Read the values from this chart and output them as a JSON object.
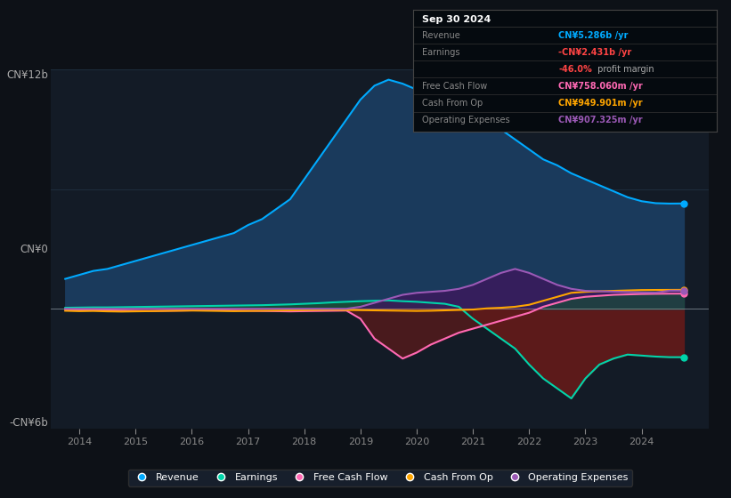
{
  "bg_color": "#0d1117",
  "plot_bg_color": "#131b26",
  "grid_color": "#1e2d3d",
  "ylabel_top": "CN¥12b",
  "ylabel_zero": "CN¥0",
  "ylabel_bot": "-CN¥6b",
  "ylim_min": -6000000000,
  "ylim_max": 12000000000,
  "xlim_min": 2013.5,
  "xlim_max": 2025.2,
  "x_ticks": [
    2014,
    2015,
    2016,
    2017,
    2018,
    2019,
    2020,
    2021,
    2022,
    2023,
    2024
  ],
  "colors": {
    "revenue": "#00aaff",
    "earnings": "#00d4aa",
    "free_cash_flow": "#ff69b4",
    "cash_from_op": "#ffa500",
    "operating_expenses": "#9b59b6",
    "revenue_fill": "#1a3a5c",
    "earnings_fill_pos": "#1a4a3a",
    "earnings_fill_neg": "#5c1a1a",
    "fcf_fill_neg": "#5c1a1a",
    "fcf_fill_pos": "#1a4a3a",
    "opex_fill": "#3a1a5c"
  },
  "revenue_x": [
    2013.75,
    2014.0,
    2014.25,
    2014.5,
    2014.75,
    2015.0,
    2015.25,
    2015.5,
    2015.75,
    2016.0,
    2016.25,
    2016.5,
    2016.75,
    2017.0,
    2017.25,
    2017.5,
    2017.75,
    2018.0,
    2018.25,
    2018.5,
    2018.75,
    2019.0,
    2019.25,
    2019.5,
    2019.75,
    2020.0,
    2020.25,
    2020.5,
    2020.75,
    2021.0,
    2021.25,
    2021.5,
    2021.75,
    2022.0,
    2022.25,
    2022.5,
    2022.75,
    2023.0,
    2023.25,
    2023.5,
    2023.75,
    2024.0,
    2024.25,
    2024.5,
    2024.75
  ],
  "revenue_y": [
    1500000000,
    1700000000,
    1900000000,
    2000000000,
    2200000000,
    2400000000,
    2600000000,
    2800000000,
    3000000000,
    3200000000,
    3400000000,
    3600000000,
    3800000000,
    4200000000,
    4500000000,
    5000000000,
    5500000000,
    6500000000,
    7500000000,
    8500000000,
    9500000000,
    10500000000,
    11200000000,
    11500000000,
    11300000000,
    11000000000,
    10500000000,
    10200000000,
    10000000000,
    9800000000,
    9500000000,
    9000000000,
    8500000000,
    8000000000,
    7500000000,
    7200000000,
    6800000000,
    6500000000,
    6200000000,
    5900000000,
    5600000000,
    5400000000,
    5300000000,
    5280000000,
    5286000000
  ],
  "earnings_x": [
    2013.75,
    2014.0,
    2014.25,
    2014.5,
    2014.75,
    2015.0,
    2015.25,
    2015.5,
    2015.75,
    2016.0,
    2016.25,
    2016.5,
    2016.75,
    2017.0,
    2017.25,
    2017.5,
    2017.75,
    2018.0,
    2018.25,
    2018.5,
    2018.75,
    2019.0,
    2019.25,
    2019.5,
    2019.75,
    2020.0,
    2020.25,
    2020.5,
    2020.75,
    2021.0,
    2021.25,
    2021.5,
    2021.75,
    2022.0,
    2022.25,
    2022.5,
    2022.75,
    2023.0,
    2023.25,
    2023.5,
    2023.75,
    2024.0,
    2024.25,
    2024.5,
    2024.75
  ],
  "earnings_y": [
    50000000,
    60000000,
    70000000,
    70000000,
    80000000,
    90000000,
    100000000,
    110000000,
    120000000,
    130000000,
    140000000,
    150000000,
    160000000,
    170000000,
    180000000,
    200000000,
    220000000,
    250000000,
    280000000,
    320000000,
    350000000,
    380000000,
    400000000,
    420000000,
    380000000,
    350000000,
    300000000,
    250000000,
    100000000,
    -500000000,
    -1000000000,
    -1500000000,
    -2000000000,
    -2800000000,
    -3500000000,
    -4000000000,
    -4500000000,
    -3500000000,
    -2800000000,
    -2500000000,
    -2300000000,
    -2350000000,
    -2400000000,
    -2430000000,
    -2431000000
  ],
  "fcf_x": [
    2013.75,
    2014.0,
    2014.25,
    2014.5,
    2014.75,
    2015.0,
    2015.25,
    2015.5,
    2015.75,
    2016.0,
    2016.25,
    2016.5,
    2016.75,
    2017.0,
    2017.25,
    2017.5,
    2017.75,
    2018.0,
    2018.25,
    2018.5,
    2018.75,
    2019.0,
    2019.25,
    2019.5,
    2019.75,
    2020.0,
    2020.25,
    2020.5,
    2020.75,
    2021.0,
    2021.25,
    2021.5,
    2021.75,
    2022.0,
    2022.25,
    2022.5,
    2022.75,
    2023.0,
    2023.25,
    2023.5,
    2023.75,
    2024.0,
    2024.25,
    2024.5,
    2024.75
  ],
  "fcf_y": [
    -50000000,
    -60000000,
    -70000000,
    -80000000,
    -90000000,
    -100000000,
    -110000000,
    -100000000,
    -90000000,
    -80000000,
    -70000000,
    -80000000,
    -90000000,
    -100000000,
    -110000000,
    -120000000,
    -130000000,
    -120000000,
    -110000000,
    -100000000,
    -90000000,
    -500000000,
    -1500000000,
    -2000000000,
    -2500000000,
    -2200000000,
    -1800000000,
    -1500000000,
    -1200000000,
    -1000000000,
    -800000000,
    -600000000,
    -400000000,
    -200000000,
    100000000,
    300000000,
    500000000,
    600000000,
    650000000,
    700000000,
    720000000,
    740000000,
    750000000,
    757000000,
    758000000
  ],
  "cfo_x": [
    2013.75,
    2014.0,
    2014.25,
    2014.5,
    2014.75,
    2015.0,
    2015.25,
    2015.5,
    2015.75,
    2016.0,
    2016.25,
    2016.5,
    2016.75,
    2017.0,
    2017.25,
    2017.5,
    2017.75,
    2018.0,
    2018.25,
    2018.5,
    2018.75,
    2019.0,
    2019.25,
    2019.5,
    2019.75,
    2020.0,
    2020.25,
    2020.5,
    2020.75,
    2021.0,
    2021.25,
    2021.5,
    2021.75,
    2022.0,
    2022.25,
    2022.5,
    2022.75,
    2023.0,
    2023.25,
    2023.5,
    2023.75,
    2024.0,
    2024.25,
    2024.5,
    2024.75
  ],
  "cfo_y": [
    -100000000,
    -120000000,
    -110000000,
    -130000000,
    -140000000,
    -130000000,
    -120000000,
    -110000000,
    -100000000,
    -90000000,
    -100000000,
    -110000000,
    -120000000,
    -110000000,
    -100000000,
    -90000000,
    -80000000,
    -70000000,
    -60000000,
    -50000000,
    -60000000,
    -70000000,
    -80000000,
    -90000000,
    -100000000,
    -110000000,
    -100000000,
    -80000000,
    -60000000,
    -40000000,
    20000000,
    50000000,
    100000000,
    200000000,
    400000000,
    600000000,
    800000000,
    850000000,
    880000000,
    900000000,
    920000000,
    940000000,
    945000000,
    948000000,
    949900000
  ],
  "opex_x": [
    2013.75,
    2014.0,
    2014.25,
    2014.5,
    2014.75,
    2015.0,
    2015.25,
    2015.5,
    2015.75,
    2016.0,
    2016.25,
    2016.5,
    2016.75,
    2017.0,
    2017.25,
    2017.5,
    2017.75,
    2018.0,
    2018.25,
    2018.5,
    2018.75,
    2019.0,
    2019.25,
    2019.5,
    2019.75,
    2020.0,
    2020.25,
    2020.5,
    2020.75,
    2021.0,
    2021.25,
    2021.5,
    2021.75,
    2022.0,
    2022.25,
    2022.5,
    2022.75,
    2023.0,
    2023.25,
    2023.5,
    2023.75,
    2024.0,
    2024.25,
    2024.5,
    2024.75
  ],
  "opex_y": [
    0,
    0,
    0,
    0,
    0,
    0,
    0,
    0,
    0,
    0,
    0,
    0,
    0,
    0,
    0,
    0,
    0,
    0,
    0,
    0,
    0,
    100000000,
    300000000,
    500000000,
    700000000,
    800000000,
    850000000,
    900000000,
    1000000000,
    1200000000,
    1500000000,
    1800000000,
    2000000000,
    1800000000,
    1500000000,
    1200000000,
    1000000000,
    900000000,
    880000000,
    860000000,
    840000000,
    820000000,
    810000000,
    908000000,
    907300000
  ],
  "infobox_title": "Sep 30 2024",
  "infobox_rows": [
    {
      "label": "Revenue",
      "value": "CN¥5.286b /yr",
      "value_color": "#00aaff"
    },
    {
      "label": "Earnings",
      "value": "-CN¥2.431b /yr",
      "value_color": "#ff4444"
    },
    {
      "label": "",
      "value_pct": "-46.0%",
      "value_pct_color": "#ff4444",
      "value_rest": " profit margin",
      "value_rest_color": "#aaaaaa"
    },
    {
      "label": "Free Cash Flow",
      "value": "CN¥758.060m /yr",
      "value_color": "#ff69b4"
    },
    {
      "label": "Cash From Op",
      "value": "CN¥949.901m /yr",
      "value_color": "#ffa500"
    },
    {
      "label": "Operating Expenses",
      "value": "CN¥907.325m /yr",
      "value_color": "#9b59b6"
    }
  ],
  "legend": [
    {
      "label": "Revenue",
      "color": "#00aaff"
    },
    {
      "label": "Earnings",
      "color": "#00d4aa"
    },
    {
      "label": "Free Cash Flow",
      "color": "#ff69b4"
    },
    {
      "label": "Cash From Op",
      "color": "#ffa500"
    },
    {
      "label": "Operating Expenses",
      "color": "#9b59b6"
    }
  ]
}
